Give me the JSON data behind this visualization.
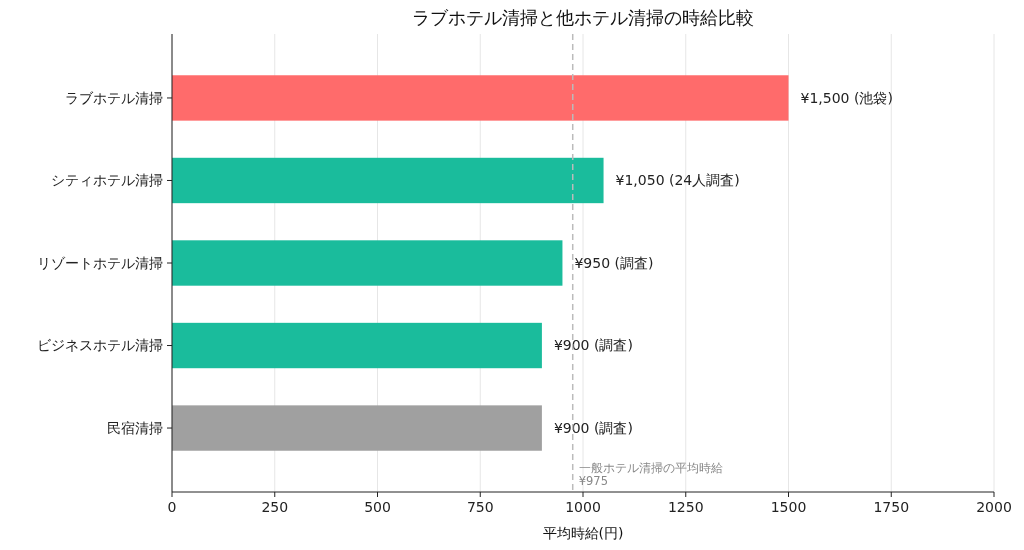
{
  "chart_data": {
    "type": "bar",
    "orientation": "horizontal",
    "title": "ラブホテル清掃と他ホテル清掃の時給比較",
    "xlabel": "平均時給(円)",
    "categories": [
      "ラブホテル清掃",
      "シティホテル清掃",
      "リゾートホテル清掃",
      "ビジネスホテル清掃",
      "民宿清掃"
    ],
    "values": [
      1500,
      1050,
      950,
      900,
      900
    ],
    "colors": [
      "#ff6b6b",
      "#1abc9c",
      "#1abc9c",
      "#1abc9c",
      "#a0a0a0"
    ],
    "value_labels": [
      "¥1,500 (池袋)",
      "¥1,050 (24人調査)",
      "¥950 (調査)",
      "¥900 (調査)",
      "¥900 (調査)"
    ],
    "xlim": [
      0,
      2000
    ],
    "xticks": [
      0,
      250,
      500,
      750,
      1000,
      1250,
      1500,
      1750,
      2000
    ],
    "grid": "x",
    "ref_lines": [
      {
        "axis": "x",
        "value": 975,
        "label": "一般ホテル清掃の平均時給\n¥975",
        "color": "#bbbbbb",
        "line_style": "dashed"
      }
    ]
  }
}
